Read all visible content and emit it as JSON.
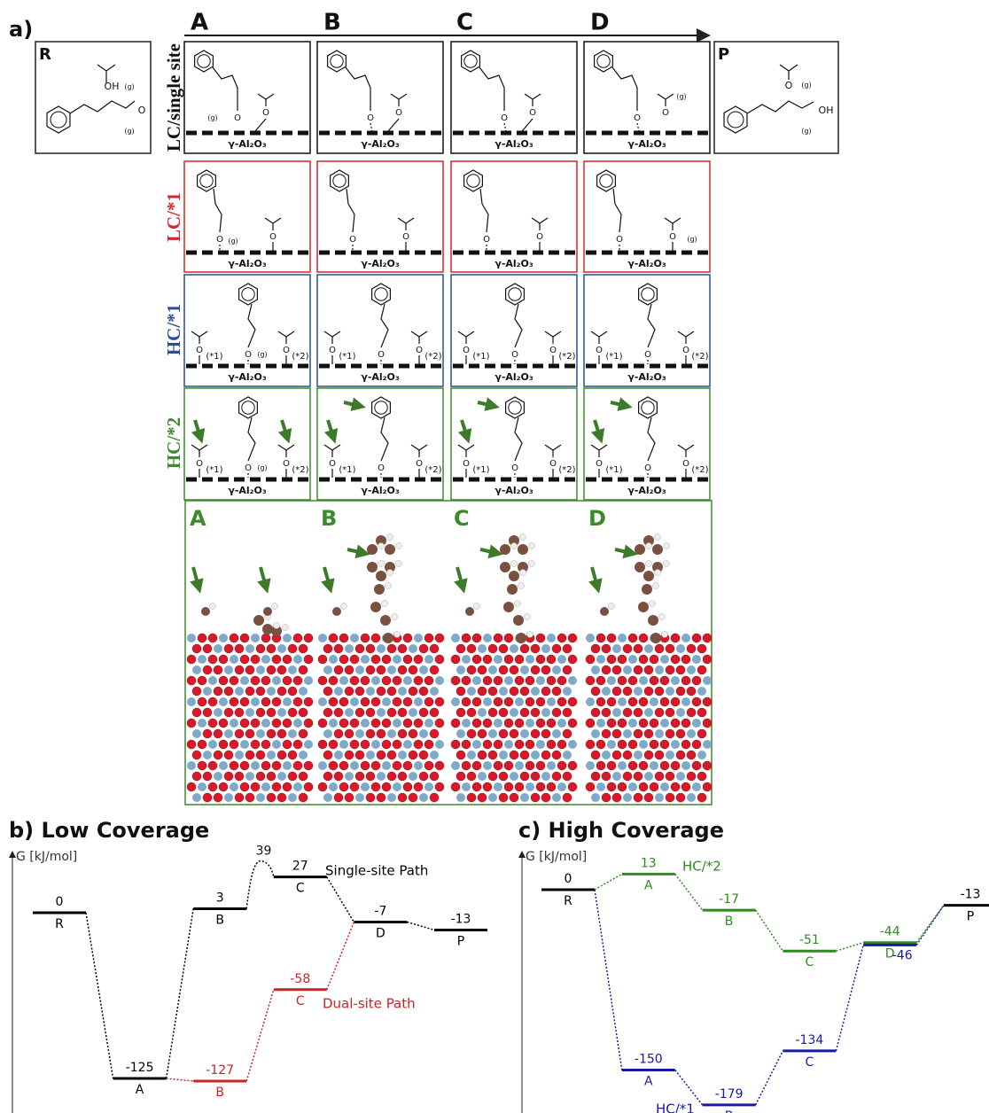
{
  "panel_a": {
    "label": "a)",
    "steps": [
      "A",
      "B",
      "C",
      "D"
    ],
    "reactant": "R",
    "product": "P",
    "rows": [
      {
        "label": "LC/single site",
        "color": "#111111"
      },
      {
        "label": "LC/*1",
        "color": "#d0282e"
      },
      {
        "label": "HC/*1",
        "color": "#2a4f9a"
      },
      {
        "label": "HC/*2",
        "color": "#3d8a2e"
      }
    ],
    "surface": "γ-Al₂O₃",
    "oxygen": "O",
    "hydroxyl": "OH",
    "gas": "(g)",
    "sites": [
      "(*1)",
      "(*2)"
    ]
  },
  "panel_b": {
    "title": "b) Low Coverage",
    "y_label": "G [kJ/mol]",
    "states": [
      "R",
      "A",
      "B",
      "C",
      "D",
      "P"
    ],
    "series": [
      {
        "name": "Single-site Path",
        "color": "#000000",
        "values": [
          0,
          -125,
          3,
          27,
          -7,
          -13
        ]
      },
      {
        "name": "Dual-site Path",
        "color": "#cc2222",
        "values": [
          null,
          null,
          -127,
          -58,
          null,
          null
        ]
      }
    ],
    "transition_state": 39
  },
  "panel_c": {
    "title": "c) High Coverage",
    "y_label": "G [kJ/mol]",
    "states": [
      "R",
      "A",
      "B",
      "C",
      "D",
      "P"
    ],
    "series": [
      {
        "color": "#000000",
        "values": [
          0,
          null,
          null,
          null,
          null,
          -13
        ]
      },
      {
        "name": "HC/*2",
        "color": "#2e8b1e",
        "values": [
          null,
          13,
          -17,
          -51,
          -44,
          null
        ]
      },
      {
        "name": "HC/*1",
        "color": "#1a1aa0",
        "values": [
          null,
          -150,
          -179,
          -134,
          -46,
          null
        ]
      }
    ]
  }
}
